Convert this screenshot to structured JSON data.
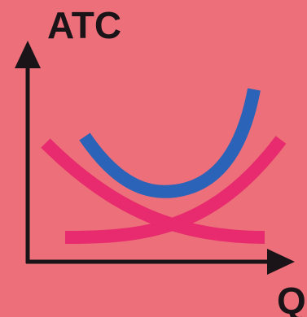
{
  "diagram": {
    "y_axis_label": "ATC",
    "x_axis_label": "Q",
    "curves": [
      {
        "name": "",
        "shape": "u-shaped rising steeply on the right",
        "color": "#2B63B8"
      },
      {
        "name": "",
        "shape": "falling from left, flattening to the right",
        "color": "#E72B6E"
      },
      {
        "name": "",
        "shape": "flat on the left, rising to the right",
        "color": "#E72B6E"
      }
    ]
  },
  "colors": {
    "background": "#EC6F7A",
    "axis": "#1A1418",
    "text": "#1A1418",
    "blue_curve": "#2B63B8",
    "pink_curve": "#E72B6E"
  }
}
